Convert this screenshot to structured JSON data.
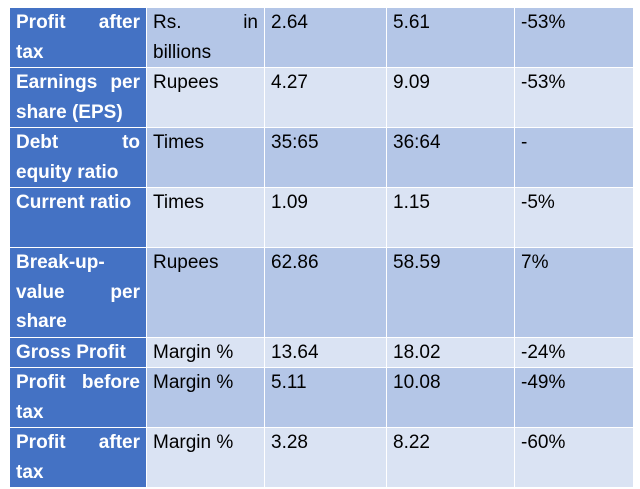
{
  "table": {
    "rows": [
      {
        "metric": "Profit after tax",
        "unit": "Rs. in billions",
        "value_a": "2.64",
        "value_b": "5.61",
        "change": "-53%"
      },
      {
        "metric": "Earnings per share (EPS)",
        "unit": "Rupees",
        "value_a": "4.27",
        "value_b": "9.09",
        "change": "-53%"
      },
      {
        "metric": "Debt to equity ratio",
        "unit": "Times",
        "value_a": "35:65",
        "value_b": "36:64",
        "change": "-"
      },
      {
        "metric": "Current ratio",
        "unit": "Times",
        "value_a": "1.09",
        "value_b": "1.15",
        "change": "-5%"
      },
      {
        "metric": "Break-up-value per share",
        "unit": "Rupees",
        "value_a": "62.86",
        "value_b": "58.59",
        "change": "7%"
      },
      {
        "metric": "Gross Profit",
        "unit": "Margin %",
        "value_a": "13.64",
        "value_b": "18.02",
        "change": "-24%"
      },
      {
        "metric": "Profit before tax",
        "unit": "Margin %",
        "value_a": "5.11",
        "value_b": "10.08",
        "change": "-49%"
      },
      {
        "metric": "Profit after tax",
        "unit": "Margin %",
        "value_a": "3.28",
        "value_b": "8.22",
        "change": "-60%"
      }
    ]
  },
  "colors": {
    "header_blue": "#4472c4",
    "row_dark": "#b4c6e7",
    "row_light": "#dae3f3"
  }
}
